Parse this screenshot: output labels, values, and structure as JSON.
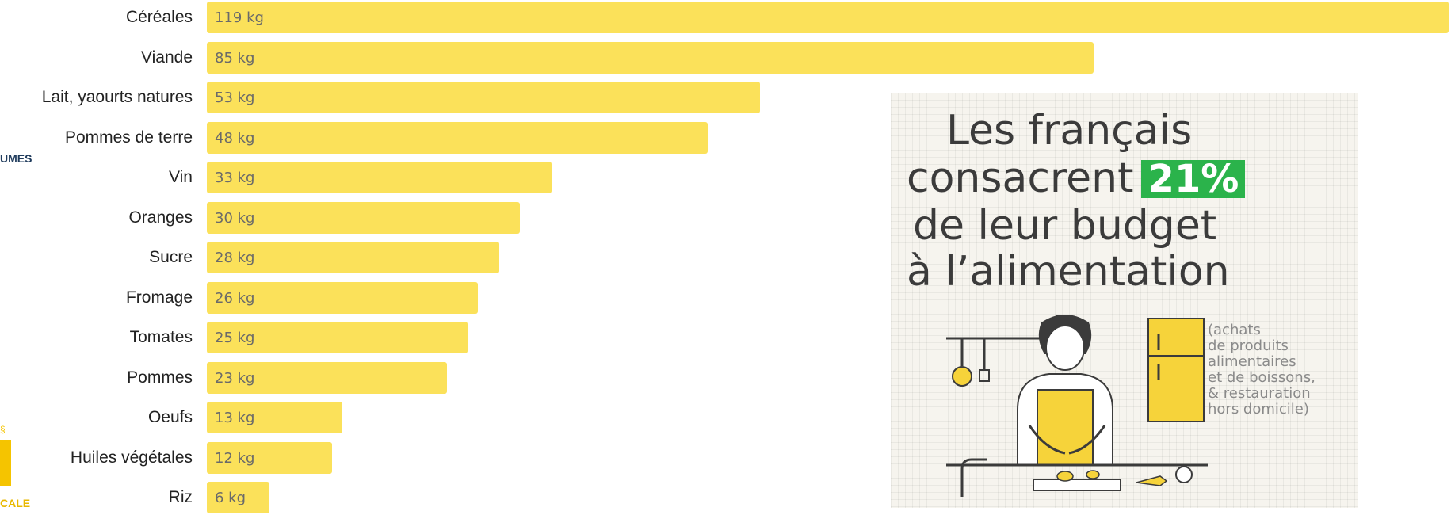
{
  "chart_data": {
    "type": "bar",
    "orientation": "horizontal",
    "categories": [
      "Céréales",
      "Viande",
      "Lait, yaourts natures",
      "Pommes de terre",
      "Vin",
      "Oranges",
      "Sucre",
      "Fromage",
      "Tomates",
      "Pommes",
      "Oeufs",
      "Huiles végétales",
      "Riz"
    ],
    "values": [
      119,
      85,
      53,
      48,
      33,
      30,
      28,
      26,
      25,
      23,
      13,
      12,
      6
    ],
    "value_labels": [
      "119 kg",
      "85 kg",
      "53 kg",
      "48 kg",
      "33 kg",
      "30 kg",
      "28 kg",
      "26 kg",
      "25 kg",
      "23 kg",
      "13 kg",
      "12 kg",
      "6 kg"
    ],
    "unit": "kg",
    "bar_color": "#fbe15a",
    "title": "",
    "xlabel": "",
    "ylabel": "",
    "grid": false,
    "legend": "none"
  },
  "background_fragments": {
    "top_text": "UMES",
    "bottom_text": "CALE",
    "mid_glyph": "§",
    "navy": "#1f3b5c",
    "gold": "#f5c400"
  },
  "infographic": {
    "line1": "Les français",
    "line2_prefix": "consacrent",
    "percentage": "21%",
    "line3": "de leur budget",
    "line4": "à l’alimentation",
    "note": "(achats\nde produits\nalimentaires\net de boissons,\n& restauration\nhors domicile)",
    "illustration": "person-cooking-in-kitchen-illustration",
    "accent_green": "#2bb34b",
    "accent_yellow": "#f6d33a"
  }
}
